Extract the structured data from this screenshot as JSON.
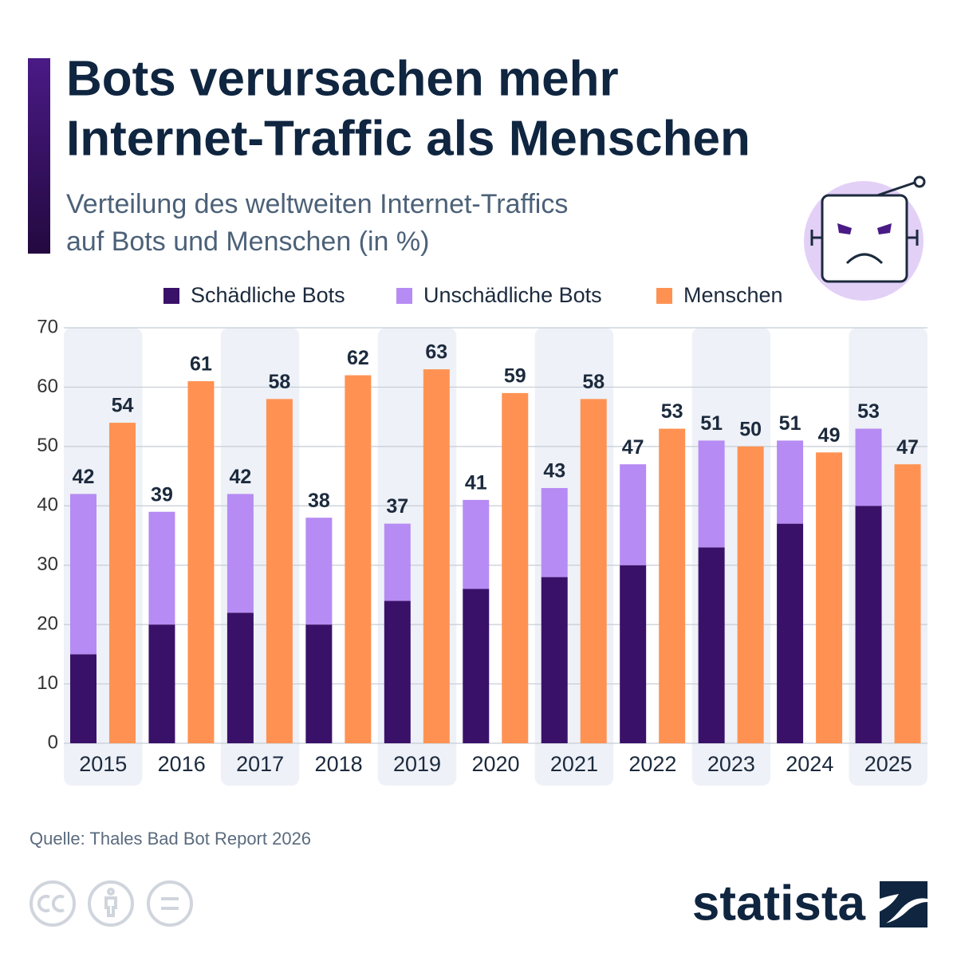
{
  "chart_data": {
    "type": "bar",
    "title": [
      "Bots verursachen mehr",
      "Internet-Traffic als Menschen"
    ],
    "subtitle": [
      "Verteilung des weltweiten Internet-Traffics",
      "auf Bots und Menschen (in %)"
    ],
    "categories": [
      "2015",
      "2016",
      "2017",
      "2018",
      "2019",
      "2020",
      "2021",
      "2022",
      "2023",
      "2024",
      "2025"
    ],
    "series": [
      {
        "name": "Schädliche Bots",
        "color": "#3a1169",
        "values": [
          15,
          20,
          22,
          20,
          24,
          26,
          28,
          30,
          33,
          37,
          40
        ]
      },
      {
        "name": "Unschädliche Bots",
        "color": "#b68bf3",
        "values": [
          27,
          19,
          20,
          18,
          13,
          15,
          15,
          17,
          18,
          14,
          13
        ]
      },
      {
        "name": "Menschen",
        "color": "#ff9252",
        "values": [
          54,
          61,
          58,
          62,
          63,
          59,
          58,
          53,
          50,
          49,
          47
        ]
      }
    ],
    "bot_totals": [
      42,
      39,
      42,
      38,
      37,
      41,
      43,
      47,
      51,
      51,
      53
    ],
    "ylim": [
      0,
      70
    ],
    "yticks": [
      0,
      10,
      20,
      30,
      40,
      50,
      60,
      70
    ],
    "grid": true,
    "source": "Quelle: Thales Bad Bot Report 2026",
    "logo": "statista"
  }
}
